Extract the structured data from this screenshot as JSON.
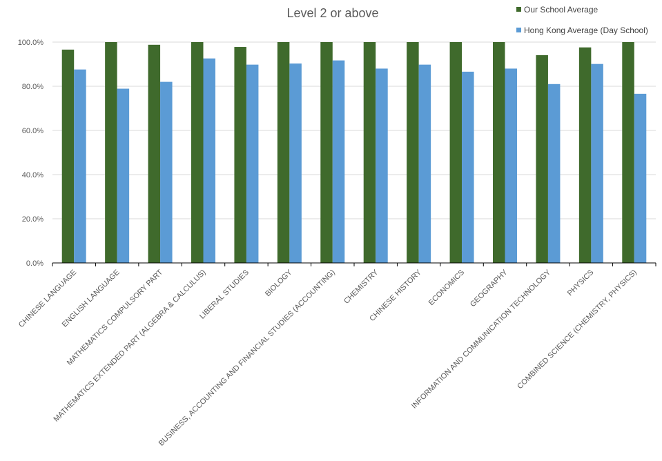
{
  "chart_data": {
    "type": "bar",
    "title": "Level 2 or above",
    "xlabel": "",
    "ylabel": "",
    "ylim": [
      0,
      100
    ],
    "yticks": [
      "0.0%",
      "20.0%",
      "40.0%",
      "60.0%",
      "80.0%",
      "100.0%"
    ],
    "grid": true,
    "legend_position": "top-right",
    "categories": [
      "CHINESE LANGUAGE",
      "ENGLISH LANGUAGE",
      "MATHEMATICS COMPULSORY PART",
      "MATHEMATICS EXTENDED PART (ALGEBRA & CALCULUS)",
      "LIBERAL STUDIES",
      "BIOLOGY",
      "BUSINESS, ACCOUNTING AND FINANCIAL STUDIES (ACCOUNTING)",
      "CHEMISTRY",
      "CHINESE HISTORY",
      "ECONOMICS",
      "GEOGRAPHY",
      "INFORMATION AND COMMUNICATION TECHNOLOGY",
      "PHYSICS",
      "COMBINED SCIENCE (CHEMISTRY, PHYSICS)"
    ],
    "series": [
      {
        "name": "Our School Average",
        "color": "#3f6a2c",
        "values": [
          96.6,
          100,
          98.8,
          100,
          97.8,
          100,
          100,
          100,
          100,
          100,
          100,
          94.1,
          97.6,
          100
        ]
      },
      {
        "name": "Hong Kong Average (Day School)",
        "color": "#5b9bd5",
        "values": [
          87.6,
          78.9,
          82.0,
          92.6,
          89.8,
          90.3,
          91.7,
          88.0,
          89.8,
          86.6,
          88.0,
          81.0,
          90.1,
          76.6
        ]
      }
    ]
  }
}
